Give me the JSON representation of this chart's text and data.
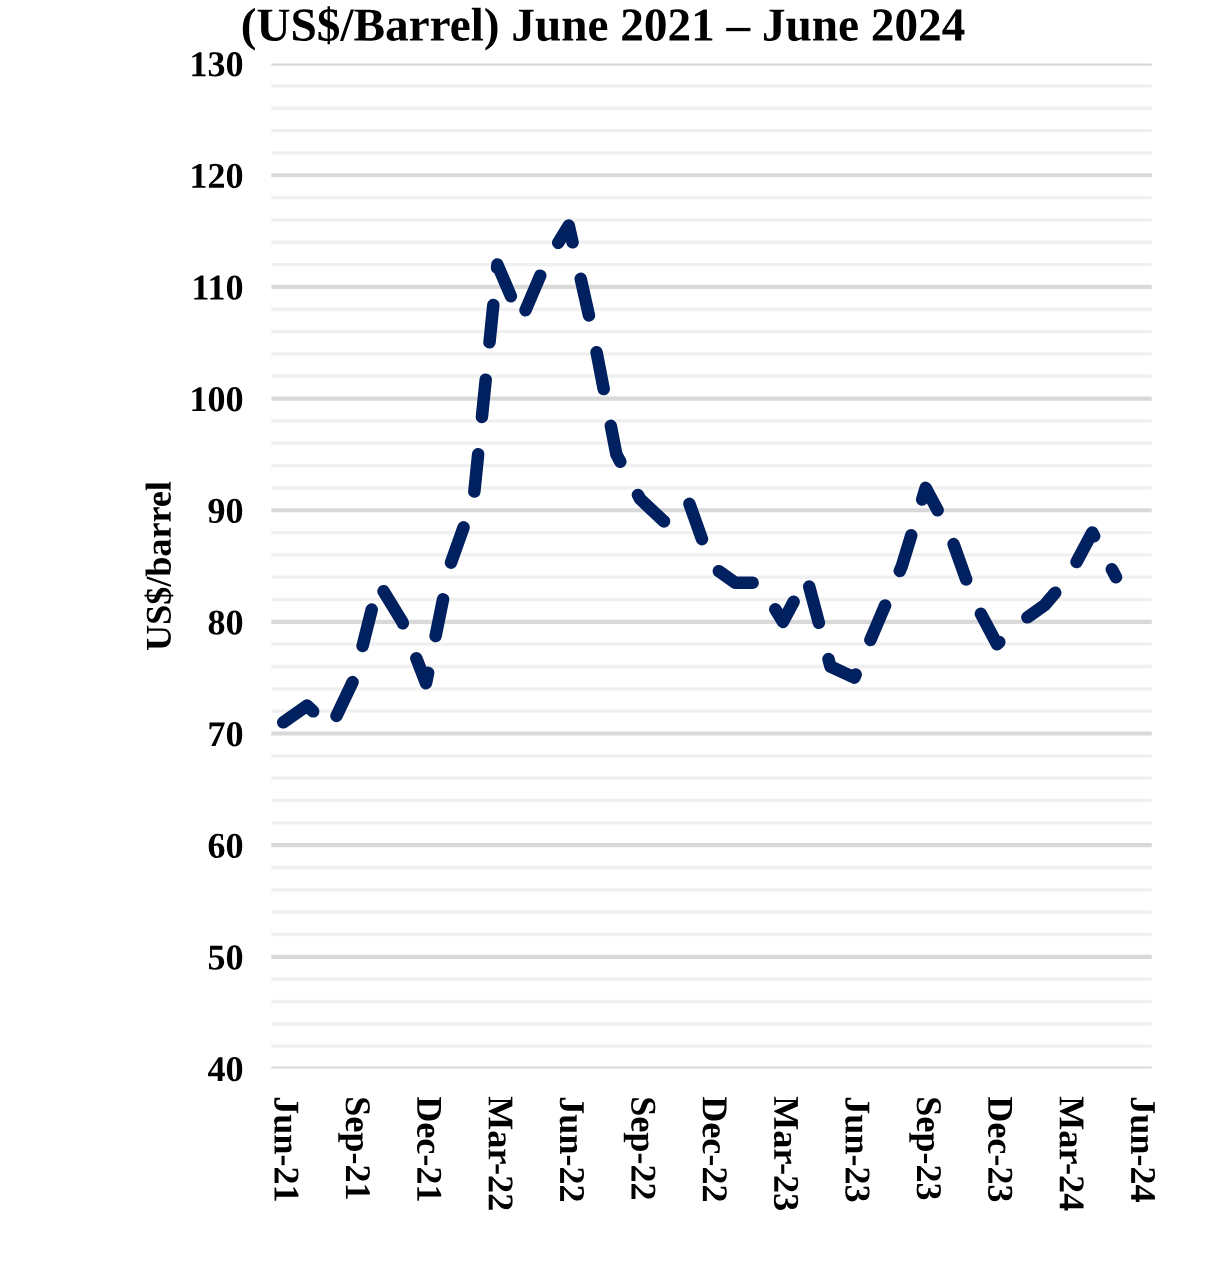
{
  "chart_data": {
    "type": "line",
    "title": "(US$/Barrel) June 2021 – June 2024",
    "ylabel": "US$/barrel",
    "categories": [
      "Jun-21",
      null,
      null,
      "Sep-21",
      null,
      null,
      "Dec-21",
      null,
      null,
      "Mar-22",
      null,
      null,
      "Jun-22",
      null,
      null,
      "Sep-22",
      null,
      null,
      "Dec-22",
      null,
      null,
      "Mar-23",
      null,
      null,
      "Jun-23",
      null,
      null,
      "Sep-23",
      null,
      null,
      "Dec-23",
      null,
      null,
      "Mar-24",
      null,
      null,
      "Jun-24"
    ],
    "series": [
      {
        "color": "#002060",
        "values": [
          71,
          72.5,
          70.5,
          75,
          83.5,
          80,
          74.5,
          85,
          91,
          112,
          107,
          112,
          115.5,
          106,
          95,
          91,
          89,
          91,
          85,
          83.5,
          83.5,
          80,
          84,
          76,
          75,
          80,
          85,
          92,
          88,
          82,
          78,
          80,
          81.5,
          84,
          88,
          84,
          null
        ]
      }
    ],
    "ylim": [
      40,
      130
    ],
    "yticks": [
      40,
      {
        "value": 42,
        "label": null
      },
      {
        "value": 44,
        "label": null
      },
      {
        "value": 46,
        "label": null
      },
      {
        "value": 48,
        "label": null
      },
      50,
      {
        "value": 52,
        "label": null
      },
      {
        "value": 54,
        "label": null
      },
      {
        "value": 56,
        "label": null
      },
      {
        "value": 58,
        "label": null
      },
      60,
      {
        "value": 62,
        "label": null
      },
      {
        "value": 64,
        "label": null
      },
      {
        "value": 66,
        "label": null
      },
      {
        "value": 68,
        "label": null
      },
      70,
      {
        "value": 72,
        "label": null
      },
      {
        "value": 74,
        "label": null
      },
      {
        "value": 76,
        "label": null
      },
      {
        "value": 78,
        "label": null
      },
      80,
      {
        "value": 82,
        "label": null
      },
      {
        "value": 84,
        "label": null
      },
      {
        "value": 86,
        "label": null
      },
      {
        "value": 88,
        "label": null
      },
      90,
      {
        "value": 92,
        "label": null
      },
      {
        "value": 94,
        "label": null
      },
      {
        "value": 96,
        "label": null
      },
      {
        "value": 98,
        "label": null
      },
      100,
      {
        "value": 102,
        "label": null
      },
      {
        "value": 104,
        "label": null
      },
      {
        "value": 106,
        "label": null
      },
      {
        "value": 108,
        "label": null
      },
      110,
      {
        "value": 112,
        "label": null
      },
      {
        "value": 114,
        "label": null
      },
      {
        "value": 116,
        "label": null
      },
      {
        "value": 118,
        "label": null
      },
      120,
      {
        "value": 122,
        "label": null
      },
      {
        "value": 124,
        "label": null
      },
      {
        "value": 126,
        "label": null
      },
      {
        "value": 128,
        "label": null
      },
      130
    ],
    "grid": "y",
    "line_style": "dashed",
    "marker": "none",
    "legend": false
  }
}
